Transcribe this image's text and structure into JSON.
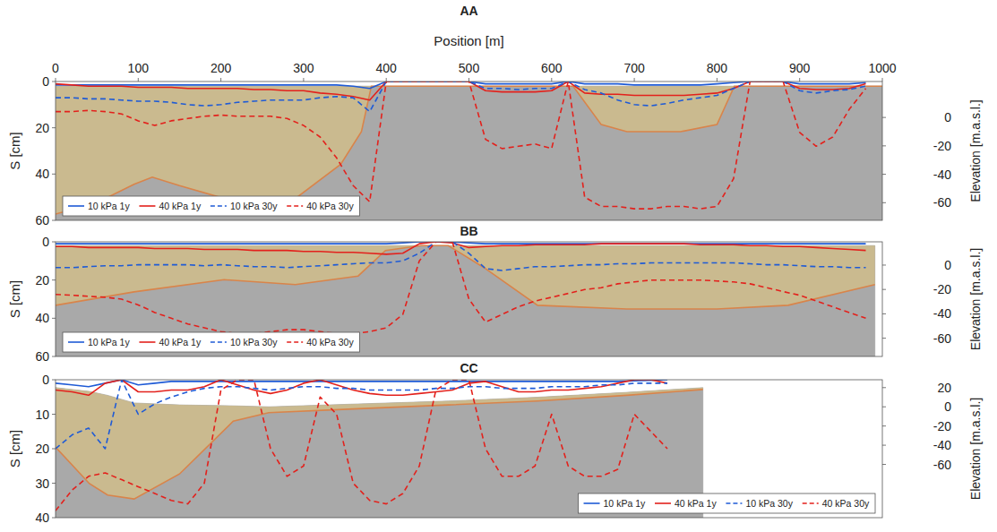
{
  "chart_data": [
    {
      "type": "line",
      "title": "AA",
      "xlabel": "Position [m]",
      "ylabel": "S [cm]",
      "y2label": "Elevation [m.a.s.l.]",
      "xlim": [
        0,
        1000
      ],
      "xticks": [
        0,
        100,
        200,
        300,
        400,
        500,
        600,
        700,
        800,
        900,
        1000
      ],
      "ylim": [
        60,
        0
      ],
      "yticks": [
        0,
        20,
        40,
        60
      ],
      "y2lim": [
        -72.4,
        25.3
      ],
      "y2ticks": [
        0,
        -20,
        -40,
        -60
      ],
      "legend": "lower left",
      "tick_labels": true,
      "x": [
        0,
        20,
        40,
        60,
        80,
        100,
        120,
        140,
        160,
        180,
        200,
        220,
        240,
        260,
        280,
        300,
        320,
        340,
        360,
        380,
        400,
        420,
        440,
        460,
        480,
        500,
        520,
        540,
        560,
        580,
        600,
        620,
        640,
        660,
        680,
        700,
        720,
        740,
        760,
        780,
        800,
        820,
        840,
        860,
        880,
        900,
        920,
        940,
        960,
        980
      ],
      "series": [
        {
          "name": "10 kPa 1y",
          "color": "#1f5bd6",
          "line_style": "solid",
          "values": [
            1.5,
            1.5,
            1.5,
            1.5,
            1.5,
            1.5,
            1.5,
            1.5,
            1.5,
            1.5,
            1.5,
            1.5,
            1.5,
            1.5,
            1.5,
            1.5,
            1.5,
            1.5,
            2,
            3,
            0,
            0,
            0,
            0,
            0,
            0,
            1,
            1,
            1,
            1,
            1,
            0,
            1,
            1,
            1,
            1.5,
            1.5,
            1.5,
            1.5,
            1.5,
            1,
            0.5,
            0,
            0,
            0,
            1,
            1,
            1,
            1,
            0.5
          ]
        },
        {
          "name": "40 kPa 1y",
          "color": "#e3211c",
          "line_style": "solid",
          "values": [
            1,
            1.5,
            2,
            2,
            2,
            2.5,
            2.5,
            2.5,
            3,
            3,
            3,
            3,
            3.5,
            3.5,
            4,
            4,
            5,
            5.5,
            6.5,
            8,
            0,
            0,
            0,
            0,
            0,
            0,
            4,
            4.5,
            4.5,
            4.5,
            4,
            0,
            5,
            5.5,
            5.5,
            6,
            6,
            6,
            6,
            5.5,
            5,
            3,
            0,
            0,
            0,
            3,
            3.5,
            3.5,
            3,
            1
          ]
        },
        {
          "name": "10 kPa 30y",
          "color": "#1f5bd6",
          "line_style": "dashed",
          "values": [
            7,
            7,
            7.5,
            7.5,
            8,
            8.5,
            8.5,
            9,
            10,
            10.5,
            10,
            9,
            8.5,
            8,
            8,
            8,
            7,
            6.5,
            7,
            13,
            0,
            0,
            0,
            0,
            0,
            0,
            3,
            3,
            3.5,
            3,
            3,
            0,
            3.5,
            5,
            8,
            10,
            10.5,
            9.5,
            8,
            7,
            6,
            3,
            0,
            0,
            0,
            4,
            5,
            4,
            3.5,
            2
          ]
        },
        {
          "name": "40 kPa 30y",
          "color": "#e3211c",
          "line_style": "dashed",
          "values": [
            13,
            13,
            12.5,
            13,
            14,
            17,
            19,
            17,
            16,
            15,
            14.5,
            15,
            15,
            15,
            16,
            19,
            24,
            33,
            45,
            52,
            0,
            0,
            0,
            0,
            0,
            0,
            25,
            29,
            28,
            27,
            29,
            0,
            50,
            54,
            54,
            55,
            55,
            54,
            54,
            55,
            54,
            42,
            0,
            0,
            0,
            22,
            28,
            24,
            12,
            3
          ]
        }
      ],
      "section": {
        "x": [
          0,
          50,
          95,
          117,
          150,
          204,
          250,
          290,
          345,
          370,
          382,
          502,
          626,
          660,
          691,
          756,
          800,
          821,
          1000
        ],
        "ground": [
          22,
          22,
          22,
          22,
          22,
          22,
          22,
          22,
          22,
          22,
          22,
          22,
          22,
          22,
          22,
          22,
          22,
          22,
          22
        ],
        "soft_bottom": [
          -68,
          -60,
          -47,
          -42,
          -48,
          -57,
          -58,
          -57,
          -33,
          -10,
          22,
          22,
          22,
          -5,
          -10,
          -10,
          -5,
          22,
          22
        ]
      }
    },
    {
      "type": "line",
      "title": "BB",
      "ylabel": "S [cm]",
      "y2label": "Elevation [m.a.s.l.]",
      "xlim": [
        0,
        1000
      ],
      "ylim": [
        60,
        0
      ],
      "yticks": [
        0,
        20,
        40,
        60
      ],
      "y2lim": [
        -75,
        19.1
      ],
      "y2ticks": [
        0,
        -20,
        -40,
        -60
      ],
      "legend": "lower left",
      "tick_labels": "y",
      "x": [
        0,
        20,
        40,
        60,
        80,
        100,
        120,
        140,
        160,
        180,
        200,
        220,
        240,
        260,
        280,
        300,
        320,
        340,
        360,
        380,
        400,
        420,
        440,
        460,
        480,
        500,
        520,
        540,
        560,
        580,
        600,
        620,
        640,
        660,
        680,
        700,
        720,
        740,
        760,
        780,
        800,
        820,
        840,
        860,
        880,
        900,
        920,
        940,
        960,
        980
      ],
      "series": [
        {
          "name": "10 kPa 1y",
          "color": "#1f5bd6",
          "line_style": "solid",
          "values": [
            1,
            1,
            1,
            1,
            1,
            1,
            1,
            1,
            1,
            1,
            1,
            1,
            1,
            1,
            1,
            1,
            1,
            1,
            1,
            1,
            1,
            0.5,
            0,
            0,
            0,
            0.5,
            1,
            1,
            1,
            1,
            1,
            1,
            1,
            1,
            1,
            1,
            1,
            1,
            1,
            1,
            1,
            1,
            1,
            1,
            1,
            1,
            1,
            1,
            1,
            1
          ]
        },
        {
          "name": "40 kPa 1y",
          "color": "#e3211c",
          "line_style": "solid",
          "values": [
            2.5,
            2.5,
            3,
            3,
            3,
            3,
            3.5,
            3.5,
            3.5,
            4,
            4,
            4,
            4.5,
            4.5,
            4.5,
            5,
            5,
            5.5,
            5.5,
            6,
            6.5,
            6,
            1,
            0,
            0.5,
            3,
            2.5,
            2,
            2,
            1.5,
            1.5,
            1.5,
            1.5,
            1,
            1,
            1,
            1,
            1,
            1,
            1.5,
            1.5,
            1.5,
            2,
            2,
            2.5,
            2.5,
            3,
            3.5,
            4,
            4.5
          ]
        },
        {
          "name": "10 kPa 30y",
          "color": "#1f5bd6",
          "line_style": "dashed",
          "values": [
            13.5,
            13.5,
            13,
            12.5,
            12.5,
            12,
            12,
            12,
            12,
            12.5,
            12,
            12.5,
            13,
            13,
            13.5,
            13,
            12.5,
            12,
            11.5,
            11,
            11,
            10,
            6,
            0,
            0,
            6,
            14,
            15,
            14,
            13,
            13,
            12.5,
            12,
            12,
            11.5,
            11.5,
            11,
            11,
            11,
            11,
            11,
            11,
            11.5,
            12,
            12,
            12.5,
            13,
            13,
            13.5,
            13.5
          ]
        },
        {
          "name": "40 kPa 30y",
          "color": "#e3211c",
          "line_style": "dashed",
          "values": [
            27.5,
            28,
            28.5,
            29,
            30,
            33,
            37,
            40,
            43,
            45,
            47,
            48,
            48,
            47,
            46,
            46,
            47,
            48,
            48,
            47,
            45,
            38,
            10,
            0,
            0,
            30,
            42,
            38,
            34,
            31,
            29,
            27,
            25,
            24,
            22,
            21,
            20,
            20,
            20,
            20,
            20.5,
            21,
            22,
            24,
            26,
            28,
            31,
            34,
            37,
            40
          ]
        }
      ],
      "section": {
        "x": [
          0,
          95,
          204,
          290,
          366,
          399,
          442,
          475,
          518,
          583,
          691,
          800,
          886,
          991
        ],
        "ground": [
          16,
          16,
          16,
          16,
          16,
          16,
          16,
          16,
          16,
          16,
          16,
          16,
          16,
          16
        ],
        "soft_bottom": [
          -33,
          -22,
          -12,
          -16,
          -9,
          12,
          16,
          16,
          -2,
          -33,
          -36,
          -36,
          -33,
          -16
        ]
      }
    },
    {
      "type": "line",
      "title": "CC",
      "ylabel": "S [cm]",
      "y2label": "Elevation [m.a.s.l.]",
      "xlim": [
        0,
        1000
      ],
      "ylim": [
        40,
        0
      ],
      "yticks": [
        0,
        10,
        20,
        30,
        40
      ],
      "y2lim": [
        -115.5,
        28.2
      ],
      "y2ticks": [
        20,
        0,
        -20,
        -40,
        -60
      ],
      "legend": "lower right",
      "tick_labels": "y",
      "x": [
        0,
        20,
        40,
        60,
        80,
        100,
        120,
        140,
        160,
        180,
        200,
        220,
        240,
        260,
        280,
        300,
        320,
        340,
        360,
        380,
        400,
        420,
        440,
        460,
        480,
        500,
        520,
        540,
        560,
        580,
        600,
        620,
        640,
        660,
        680,
        700,
        720,
        740
      ],
      "series": [
        {
          "name": "10 kPa 1y",
          "color": "#1f5bd6",
          "line_style": "solid",
          "values": [
            1,
            1.5,
            2,
            1,
            0,
            1.5,
            1,
            0.5,
            0.5,
            0.5,
            0.5,
            0.5,
            0.5,
            0.5,
            0.5,
            0.5,
            0.5,
            0.5,
            0.5,
            0.5,
            0.5,
            0.5,
            0.5,
            0.5,
            0.5,
            0.5,
            0.5,
            0.5,
            0.5,
            0.5,
            0.5,
            0.5,
            0.5,
            0.5,
            0.5,
            0.3,
            0.2,
            0
          ]
        },
        {
          "name": "40 kPa 1y",
          "color": "#e3211c",
          "line_style": "solid",
          "values": [
            3,
            3.5,
            4.5,
            1,
            0,
            3.5,
            3.5,
            3,
            3,
            2,
            0,
            1.5,
            3,
            4,
            3,
            1,
            0,
            1.5,
            3,
            4,
            4.5,
            4.5,
            4,
            3.5,
            3,
            1,
            0.5,
            2,
            3.5,
            3.5,
            3,
            3,
            2.5,
            2,
            1,
            0,
            0,
            1
          ]
        },
        {
          "name": "10 kPa 30y",
          "color": "#1f5bd6",
          "line_style": "dashed",
          "values": [
            20,
            16,
            14,
            20,
            0,
            10,
            7,
            5,
            3.5,
            2.5,
            2,
            2,
            2.5,
            3,
            2.5,
            2,
            2,
            2.5,
            2.5,
            3,
            3,
            3,
            3,
            2.5,
            2.5,
            2,
            2,
            2.5,
            2.5,
            2.5,
            2,
            2,
            2,
            1.5,
            1.5,
            1,
            1,
            1
          ]
        },
        {
          "name": "40 kPa 30y",
          "color": "#e3211c",
          "line_style": "dashed",
          "values": [
            38,
            32,
            28,
            27,
            29,
            31,
            33,
            35,
            36,
            30,
            3,
            0,
            0,
            20,
            28,
            25,
            5,
            10,
            30,
            35,
            36,
            33,
            25,
            3,
            0,
            0,
            20,
            28,
            28,
            25,
            10,
            25,
            28,
            28,
            26,
            10,
            15,
            20
          ]
        }
      ],
      "section": {
        "x": [
          0,
          41,
          63,
          95,
          150,
          215,
          258,
          366,
          475,
          583,
          691,
          783
        ],
        "ground": [
          20,
          16,
          12,
          4,
          2,
          1,
          0,
          3,
          6,
          10,
          15,
          20
        ],
        "soft_bottom": [
          -42,
          -80,
          -92,
          -96,
          -70,
          -15,
          -6,
          -2,
          2,
          6,
          12,
          18
        ]
      }
    }
  ]
}
